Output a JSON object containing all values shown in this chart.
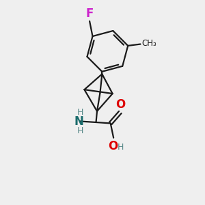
{
  "bg_color": "#efefef",
  "bond_color": "#1a1a1a",
  "F_color": "#cc22cc",
  "N_color": "#1a6b6b",
  "O_color": "#dd0000",
  "H_color": "#5a8a8a",
  "lw": 1.6,
  "fig_size": [
    3.0,
    3.0
  ],
  "dpi": 100,
  "xlim": [
    0,
    10
  ],
  "ylim": [
    0,
    10
  ]
}
